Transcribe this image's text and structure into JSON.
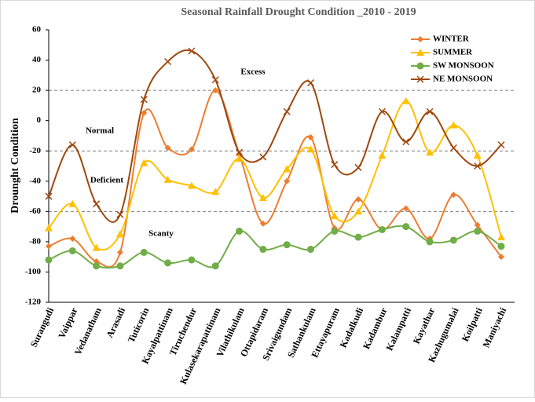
{
  "chart_data": {
    "type": "line",
    "title": "Seasonal Rainfall Drought Condition _2010 - 2019",
    "y_label": "Drounght Condition",
    "categories": [
      "Surangudi",
      "Vaippar",
      "Vedanatham",
      "Arasadi",
      "Tuticorin",
      "Kayalpattinam",
      "Tiruchendur",
      "Kulasekarapattinam",
      "Vilathikulam",
      "Ottapidaram",
      "Srivaigundam",
      "Sathankulam",
      "Ettayapuram",
      "Kadalkudi",
      "Kadambur",
      "Kalampatti",
      "Kayathar",
      "Kazhugumalai",
      "Koilpatti",
      "Maniyachi"
    ],
    "series": [
      {
        "name": "WINTER",
        "color": "#ed7d31",
        "marker": "diamond",
        "values": [
          -83,
          -78,
          -93,
          -87,
          5,
          -18,
          -19,
          20,
          -22,
          -68,
          -40,
          -11,
          -71,
          -52,
          -72,
          -58,
          -78,
          -49,
          -69,
          -90
        ]
      },
      {
        "name": "SUMMER",
        "color": "#ffc000",
        "marker": "triangle",
        "values": [
          -71,
          -55,
          -84,
          -75,
          -28,
          -39,
          -43,
          -47,
          -25,
          -51,
          -32,
          -19,
          -63,
          -60,
          -23,
          13,
          -21,
          -3,
          -23,
          -77
        ]
      },
      {
        "name": "SW MONSOON",
        "color": "#70ad47",
        "marker": "circle",
        "values": [
          -92,
          -86,
          -96,
          -96,
          -87,
          -94,
          -92,
          -96,
          -73,
          -85,
          -82,
          -85,
          -73,
          -77,
          -72,
          -70,
          -80,
          -79,
          -73,
          -83
        ]
      },
      {
        "name": "NE MONSOON",
        "color": "#9e480e",
        "marker": "x",
        "values": [
          -50,
          -16,
          -55,
          -62,
          14,
          39,
          46,
          27,
          -21,
          -24,
          6,
          25,
          -29,
          -31,
          6,
          -14,
          6,
          -18,
          -30,
          -16
        ]
      }
    ],
    "ylim": [
      -120,
      60
    ],
    "yticks": [
      -120,
      -100,
      -80,
      -60,
      -40,
      -20,
      0,
      20,
      40,
      60
    ],
    "reference_lines": [
      20,
      -20,
      -60
    ],
    "annotations": [
      "Excess",
      "Normal",
      "Deficient",
      "Scanty"
    ],
    "smooth": true,
    "legend": "top-right"
  }
}
